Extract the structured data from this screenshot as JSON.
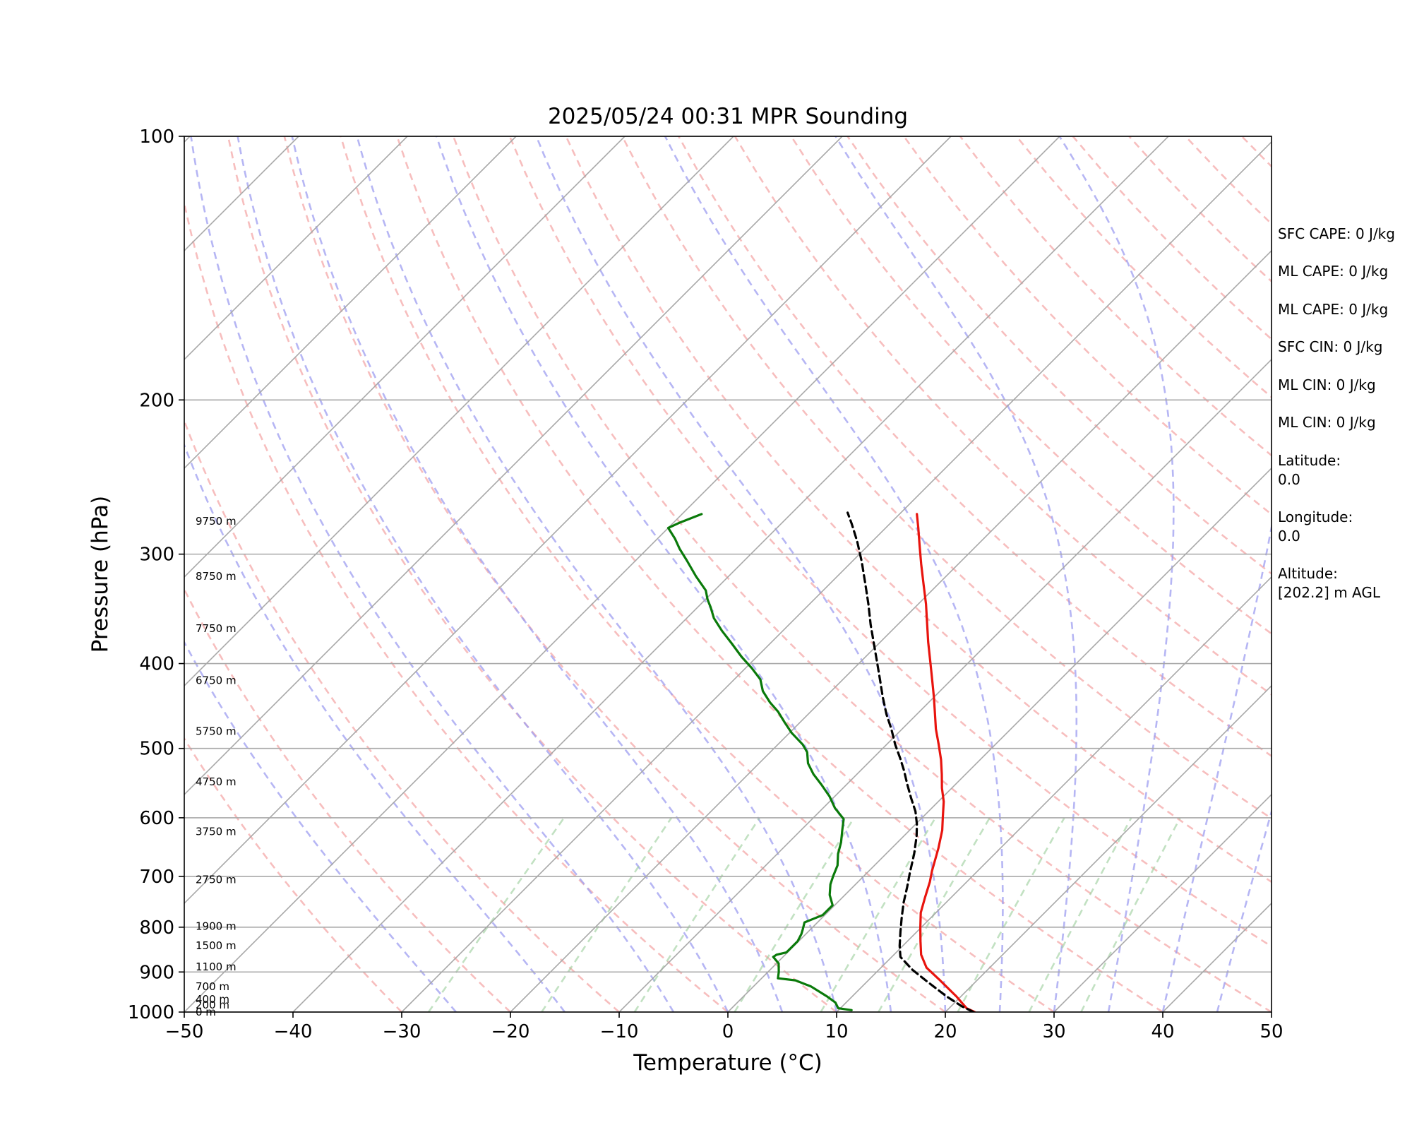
{
  "chart_data": {
    "type": "line",
    "title": "2025/05/24 00:31 MPR Sounding",
    "xlabel": "Temperature (°C)",
    "ylabel": "Pressure (hPa)",
    "xlim": [
      -50,
      50
    ],
    "ylim": [
      1000,
      100
    ],
    "y_scale": "log",
    "skew_t": true,
    "grid": true,
    "x_ticks": [
      "−50",
      "−40",
      "−30",
      "−20",
      "−10",
      "0",
      "10",
      "20",
      "30",
      "40",
      "50"
    ],
    "y_ticks": [
      100,
      200,
      300,
      400,
      500,
      600,
      700,
      800,
      900,
      1000
    ],
    "series": [
      {
        "color": "#e8140e",
        "points": [
          [
            22.7,
            1000
          ],
          [
            21.6,
            990
          ],
          [
            19.6,
            960
          ],
          [
            16.6,
            920
          ],
          [
            14.2,
            890
          ],
          [
            12.5,
            860
          ],
          [
            11.2,
            830
          ],
          [
            9.9,
            800
          ],
          [
            8.6,
            770
          ],
          [
            7.6,
            740
          ],
          [
            6.6,
            710
          ],
          [
            5.8,
            690
          ],
          [
            4.3,
            650
          ],
          [
            3.0,
            620
          ],
          [
            1.9,
            600
          ],
          [
            0.5,
            575
          ],
          [
            -0.9,
            555
          ],
          [
            -2.2,
            535
          ],
          [
            -3.6,
            515
          ],
          [
            -5.2,
            495
          ],
          [
            -6.9,
            475
          ],
          [
            -8.5,
            455
          ],
          [
            -10.0,
            437
          ],
          [
            -11.8,
            417
          ],
          [
            -13.6,
            398
          ],
          [
            -15.6,
            378
          ],
          [
            -17.4,
            360
          ],
          [
            -19.3,
            342
          ],
          [
            -21.3,
            325
          ],
          [
            -23.4,
            308
          ],
          [
            -25.3,
            293
          ],
          [
            -27.0,
            280
          ],
          [
            -28.4,
            270
          ]
        ]
      },
      {
        "color": "#000000",
        "dashed": true,
        "points": [
          [
            22.6,
            1000
          ],
          [
            21.0,
            985
          ],
          [
            18.7,
            960
          ],
          [
            15.7,
            925
          ],
          [
            13.1,
            895
          ],
          [
            10.8,
            865
          ],
          [
            9.7,
            840
          ],
          [
            8.5,
            810
          ],
          [
            7.3,
            780
          ],
          [
            6.1,
            750
          ],
          [
            5.0,
            720
          ],
          [
            4.0,
            695
          ],
          [
            2.6,
            660
          ],
          [
            1.2,
            630
          ],
          [
            0.1,
            610
          ],
          [
            -1.2,
            590
          ],
          [
            -2.8,
            570
          ],
          [
            -4.4,
            550
          ],
          [
            -6.0,
            530
          ],
          [
            -7.5,
            513
          ],
          [
            -9.2,
            495
          ],
          [
            -11.0,
            475
          ],
          [
            -12.8,
            457
          ],
          [
            -14.7,
            437
          ],
          [
            -16.5,
            418
          ],
          [
            -18.5,
            398
          ],
          [
            -20.4,
            380
          ],
          [
            -22.5,
            361
          ],
          [
            -24.6,
            342
          ],
          [
            -26.9,
            323
          ],
          [
            -29.1,
            306
          ],
          [
            -31.4,
            290
          ],
          [
            -33.5,
            277
          ],
          [
            -34.9,
            269
          ]
        ]
      },
      {
        "color": "#0a7a0a",
        "points": [
          [
            11.2,
            995
          ],
          [
            9.8,
            990
          ],
          [
            9.0,
            975
          ],
          [
            7.7,
            960
          ],
          [
            5.3,
            935
          ],
          [
            3.3,
            920
          ],
          [
            1.5,
            915
          ],
          [
            1.0,
            900
          ],
          [
            0.2,
            880
          ],
          [
            -0.9,
            865
          ],
          [
            -0.8,
            860
          ],
          [
            -0.1,
            855
          ],
          [
            -0.1,
            840
          ],
          [
            -0.1,
            830
          ],
          [
            -0.4,
            815
          ],
          [
            -0.7,
            805
          ],
          [
            -1.2,
            790
          ],
          [
            -0.2,
            775
          ],
          [
            -0.2,
            755
          ],
          [
            -1.4,
            735
          ],
          [
            -2.3,
            715
          ],
          [
            -2.8,
            700
          ],
          [
            -3.4,
            680
          ],
          [
            -4.4,
            660
          ],
          [
            -5.2,
            640
          ],
          [
            -6.2,
            620
          ],
          [
            -7.1,
            602
          ],
          [
            -8.9,
            585
          ],
          [
            -10.5,
            567
          ],
          [
            -12.3,
            550
          ],
          [
            -14.0,
            535
          ],
          [
            -15.5,
            520
          ],
          [
            -16.6,
            505
          ],
          [
            -17.7,
            495
          ],
          [
            -19.8,
            480
          ],
          [
            -21.4,
            467
          ],
          [
            -23.0,
            454
          ],
          [
            -24.6,
            443
          ],
          [
            -26.3,
            430
          ],
          [
            -27.6,
            417
          ],
          [
            -29.4,
            405
          ],
          [
            -31.4,
            393
          ],
          [
            -33.6,
            379
          ],
          [
            -35.6,
            367
          ],
          [
            -37.5,
            355
          ],
          [
            -38.8,
            345
          ],
          [
            -39.8,
            338
          ],
          [
            -40.8,
            330
          ],
          [
            -43.0,
            318
          ],
          [
            -45.3,
            305
          ],
          [
            -47.0,
            296
          ],
          [
            -48.4,
            288
          ],
          [
            -50.0,
            280
          ],
          [
            -49.4,
            276
          ],
          [
            -48.2,
            270
          ]
        ]
      }
    ],
    "height_labels": [
      {
        "label": "9750 m",
        "p": 275
      },
      {
        "label": "8750 m",
        "p": 318
      },
      {
        "label": "7750 m",
        "p": 365
      },
      {
        "label": "6750 m",
        "p": 418
      },
      {
        "label": "5750 m",
        "p": 478
      },
      {
        "label": "4750 m",
        "p": 546
      },
      {
        "label": "3750 m",
        "p": 622
      },
      {
        "label": "2750 m",
        "p": 706
      },
      {
        "label": "1900 m",
        "p": 798
      },
      {
        "label": "1500 m",
        "p": 840
      },
      {
        "label": "1100 m",
        "p": 888
      },
      {
        "label": "700 m",
        "p": 935
      },
      {
        "label": "400 m",
        "p": 967
      },
      {
        "label": "200 m",
        "p": 982
      },
      {
        "label": "0 m",
        "p": 1000
      }
    ]
  },
  "stats": [
    {
      "label": "SFC CAPE: 0 J/kg"
    },
    {
      "label": "ML CAPE: 0 J/kg"
    },
    {
      "label": "ML CAPE: 0 J/kg"
    },
    {
      "label": "SFC CIN: 0 J/kg"
    },
    {
      "label": "ML CIN: 0 J/kg"
    },
    {
      "label": "ML CIN: 0 J/kg"
    },
    {
      "label": "Latitude:",
      "value": "0.0"
    },
    {
      "label": "Longitude:",
      "value": "0.0"
    },
    {
      "label": "Altitude:",
      "value": "[202.2] m AGL"
    }
  ]
}
